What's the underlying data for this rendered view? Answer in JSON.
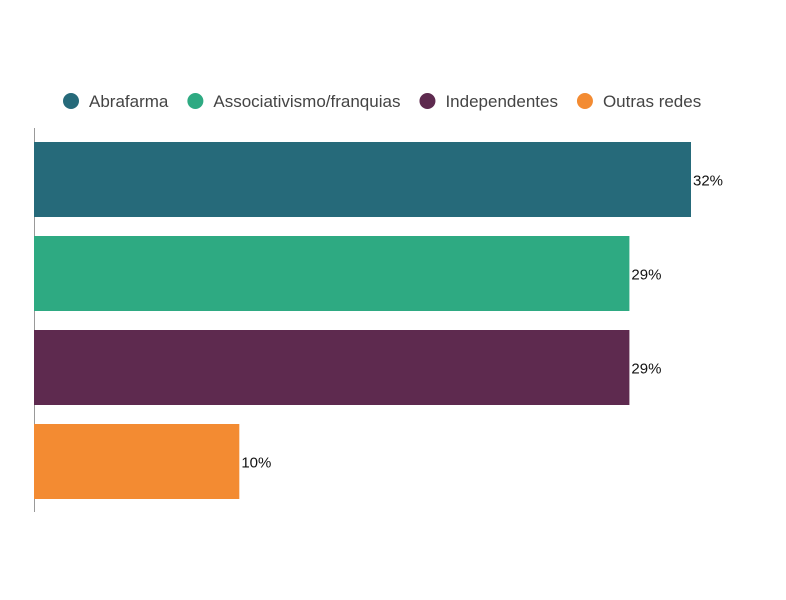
{
  "chart_data": {
    "type": "bar",
    "orientation": "horizontal",
    "title": "",
    "xlabel": "",
    "ylabel": "",
    "xlim": [
      0,
      32
    ],
    "grid": false,
    "legend_position": "top",
    "value_suffix": "%",
    "series": [
      {
        "name": "Abrafarma",
        "value": 32,
        "label": "32%",
        "color": "#266a7a"
      },
      {
        "name": "Associativismo/franquias",
        "value": 29,
        "label": "29%",
        "color": "#2eaa82"
      },
      {
        "name": "Independentes",
        "value": 29,
        "label": "29%",
        "color": "#5e2a4f"
      },
      {
        "name": "Outras redes",
        "value": 10,
        "label": "10%",
        "color": "#f38b32"
      }
    ]
  }
}
